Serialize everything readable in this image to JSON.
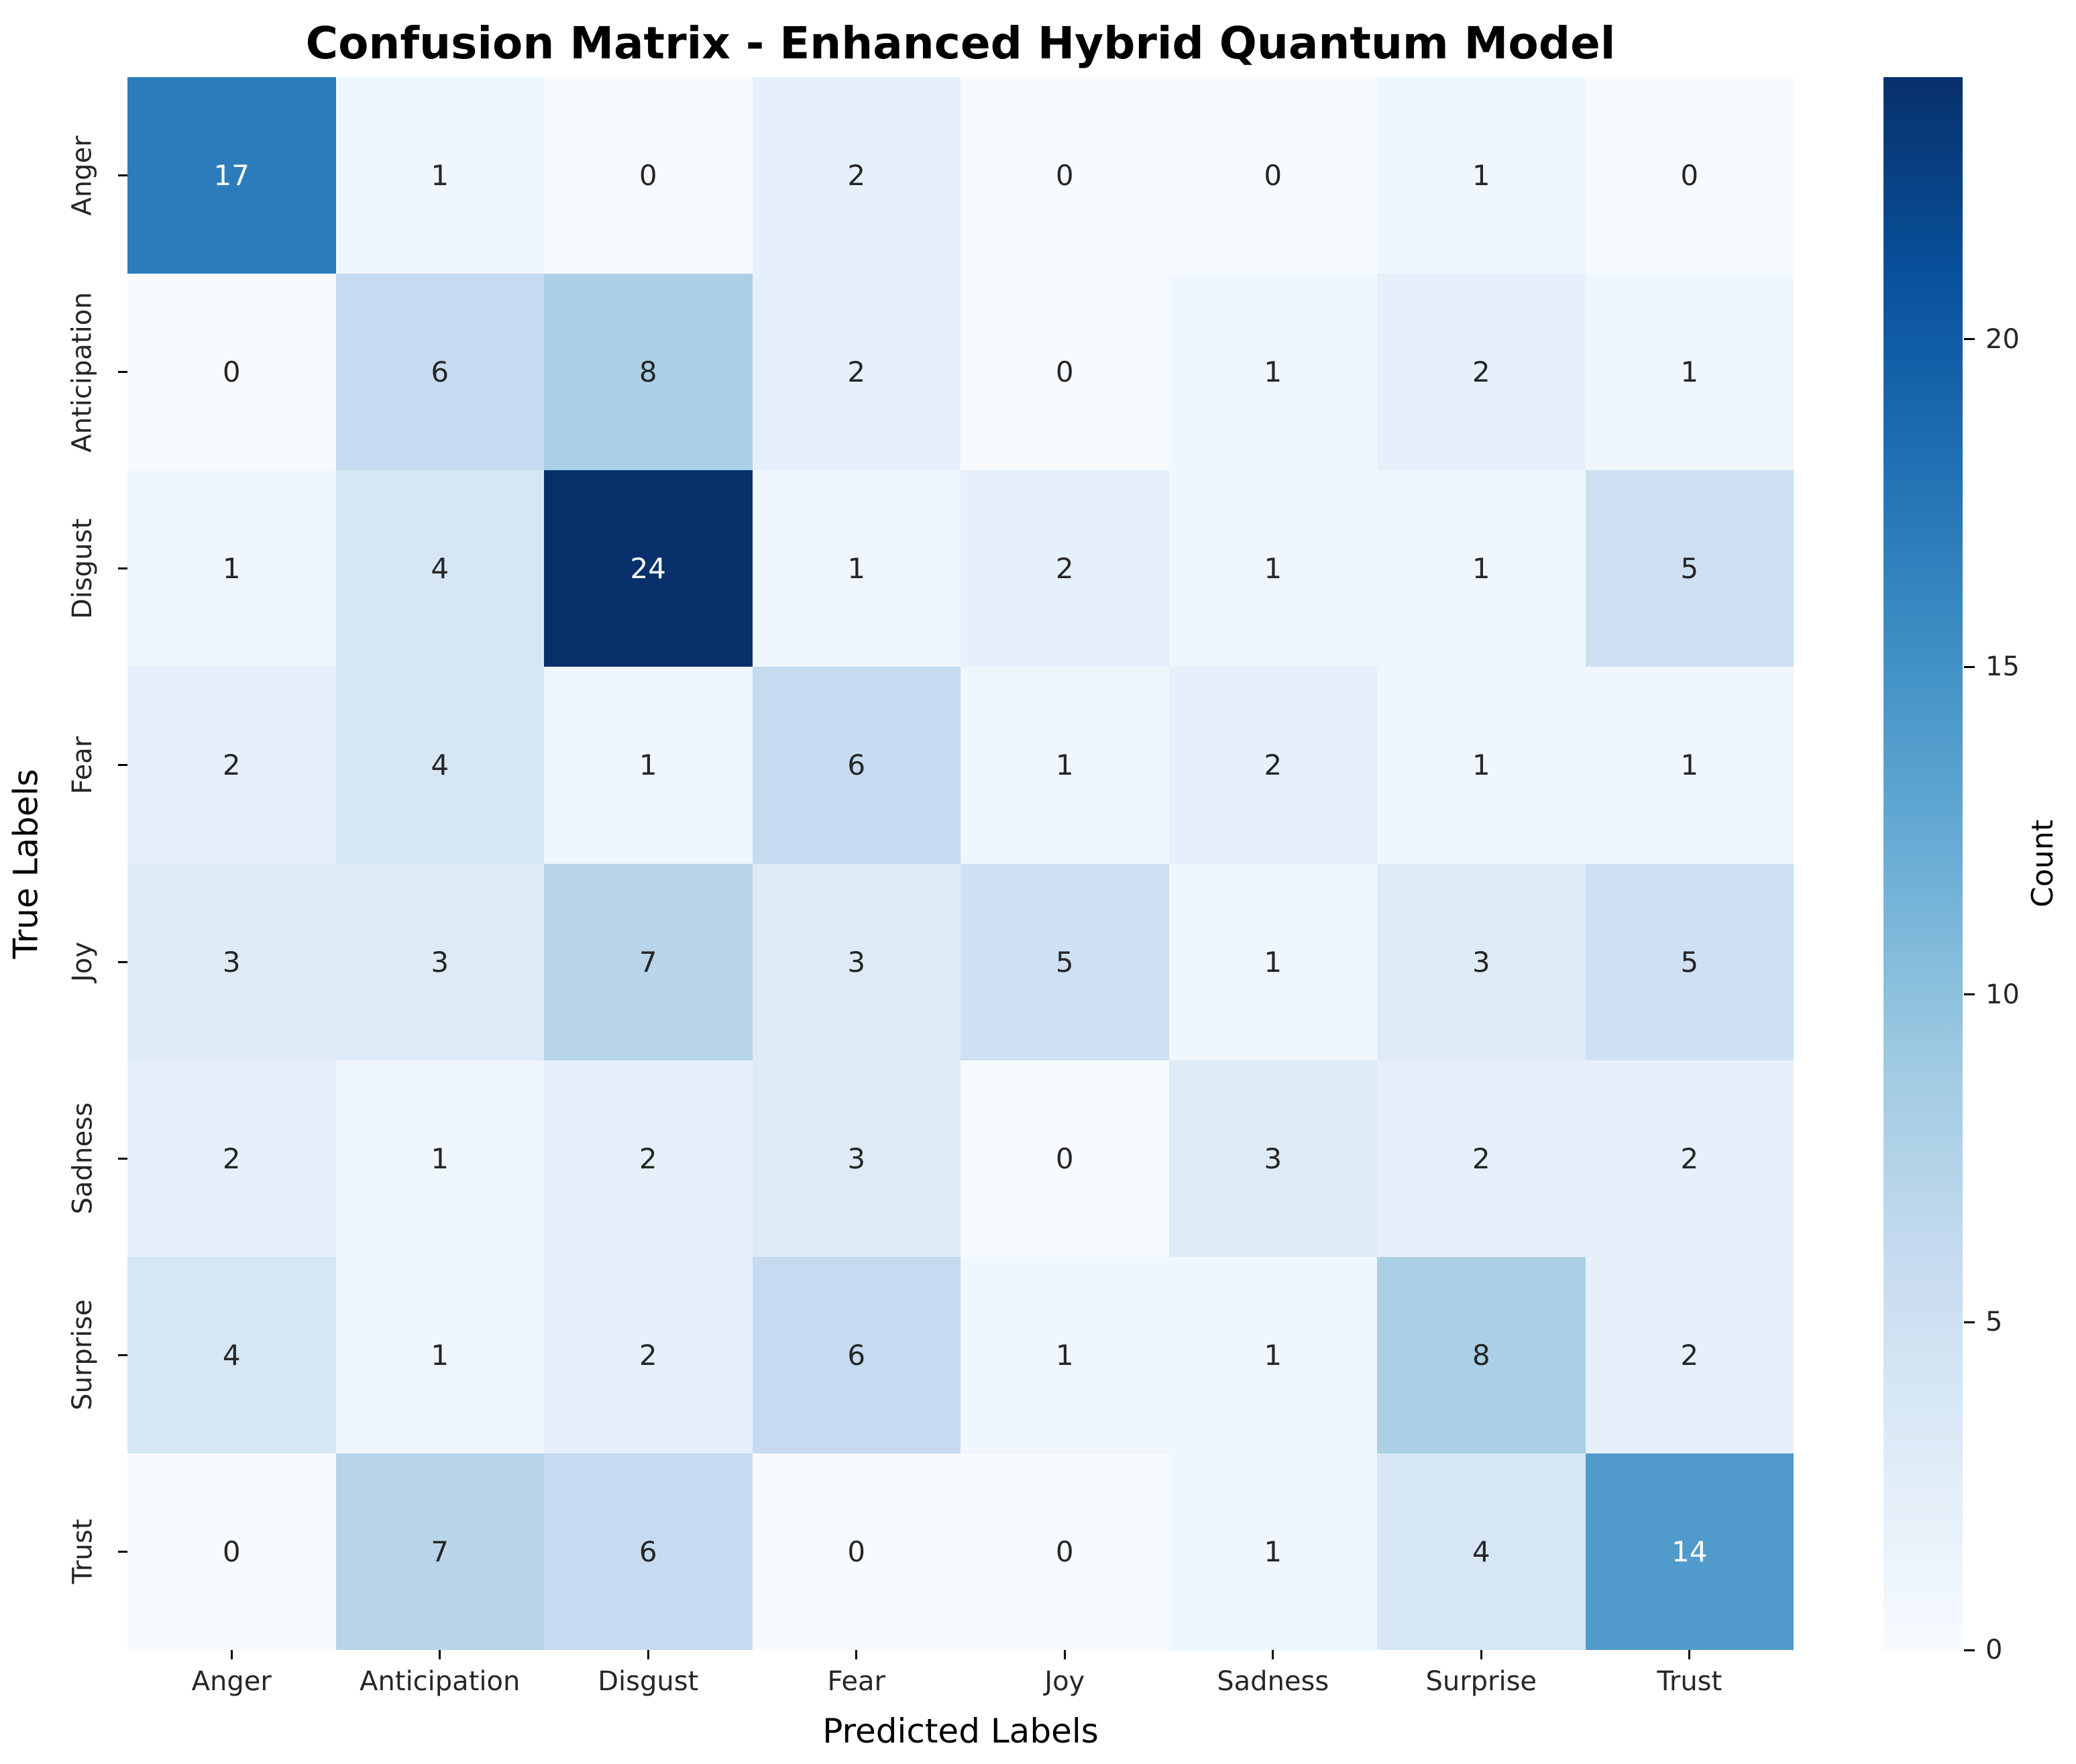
{
  "title": "Confusion Matrix - Enhanced Hybrid Quantum Model",
  "chart_data": {
    "type": "heatmap",
    "title": "Confusion Matrix - Enhanced Hybrid Quantum Model",
    "xlabel": "Predicted Labels",
    "ylabel": "True Labels",
    "x_categories": [
      "Anger",
      "Anticipation",
      "Disgust",
      "Fear",
      "Joy",
      "Sadness",
      "Surprise",
      "Trust"
    ],
    "y_categories": [
      "Anger",
      "Anticipation",
      "Disgust",
      "Fear",
      "Joy",
      "Sadness",
      "Surprise",
      "Trust"
    ],
    "values": [
      [
        17,
        1,
        0,
        2,
        0,
        0,
        1,
        0
      ],
      [
        0,
        6,
        8,
        2,
        0,
        1,
        2,
        1
      ],
      [
        1,
        4,
        24,
        1,
        2,
        1,
        1,
        5
      ],
      [
        2,
        4,
        1,
        6,
        1,
        2,
        1,
        1
      ],
      [
        3,
        3,
        7,
        3,
        5,
        1,
        3,
        5
      ],
      [
        2,
        1,
        2,
        3,
        0,
        3,
        2,
        2
      ],
      [
        4,
        1,
        2,
        6,
        1,
        1,
        8,
        2
      ],
      [
        0,
        7,
        6,
        0,
        0,
        1,
        4,
        14
      ]
    ],
    "colorbar": {
      "label": "Count",
      "ticks": [
        0,
        5,
        10,
        15,
        20
      ],
      "vmin": 0,
      "vmax": 24
    },
    "colormap": {
      "name": "Blues",
      "stops": [
        [
          247,
          251,
          255
        ],
        [
          222,
          235,
          247
        ],
        [
          198,
          219,
          239
        ],
        [
          158,
          202,
          225
        ],
        [
          107,
          174,
          214
        ],
        [
          66,
          146,
          198
        ],
        [
          33,
          113,
          181
        ],
        [
          8,
          81,
          156
        ],
        [
          8,
          48,
          107
        ]
      ]
    },
    "annotation_text_colors": {
      "light": "#ffffff",
      "dark": "#262626"
    },
    "background": "#ffffff",
    "grid": false,
    "legend_position": "colorbar-right"
  }
}
